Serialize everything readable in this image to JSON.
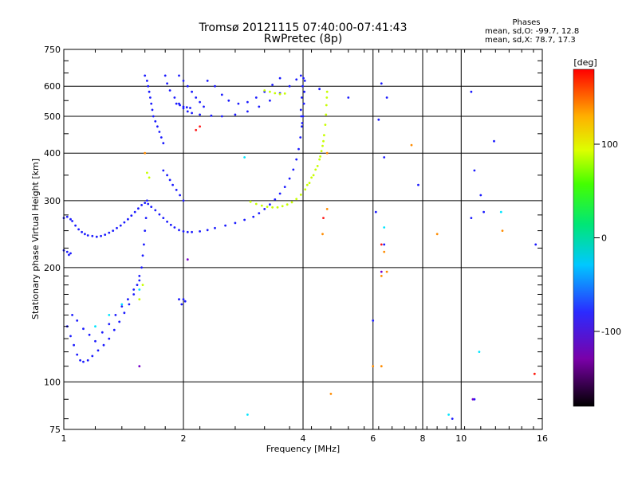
{
  "chart_data": {
    "type": "scatter",
    "title": "Tromsø 20121115 07:40:00-07:41:43",
    "subtitle": "RwPretec (8p)",
    "stats": {
      "heading": "Phases",
      "line1": "mean, sd,O: -99.7, 12.8",
      "line2": "mean, sd,X:  78.7, 17.3"
    },
    "xlabel": "Frequency [MHz]",
    "ylabel": "Stationary phase Virtual Height [km]",
    "x_scale": "log",
    "y_scale": "log",
    "xlim": [
      1,
      16
    ],
    "ylim": [
      75,
      750
    ],
    "xticks": [
      "1",
      "2",
      "4",
      "6",
      "8",
      "10",
      "16"
    ],
    "xtick_values": [
      1,
      2,
      4,
      6,
      8,
      10,
      16
    ],
    "yticks": [
      "75",
      "100",
      "200",
      "300",
      "400",
      "500",
      "600",
      "750"
    ],
    "ytick_values": [
      75,
      100,
      200,
      300,
      400,
      500,
      600,
      750
    ],
    "grid": true,
    "colorbar": {
      "label": "[deg]",
      "range": [
        -180,
        180
      ],
      "ticks": [
        "100",
        "0",
        "-100"
      ],
      "tick_values": [
        100,
        0,
        -100
      ]
    },
    "series": [
      {
        "color": "#1a1aff",
        "points": [
          [
            1.0,
            270
          ],
          [
            1.02,
            272
          ],
          [
            1.04,
            268
          ],
          [
            1.05,
            265
          ],
          [
            1.07,
            258
          ],
          [
            1.09,
            252
          ],
          [
            1.11,
            248
          ],
          [
            1.13,
            245
          ],
          [
            1.15,
            243
          ],
          [
            1.18,
            242
          ],
          [
            1.21,
            241
          ],
          [
            1.24,
            242
          ],
          [
            1.27,
            244
          ],
          [
            1.3,
            247
          ],
          [
            1.33,
            250
          ],
          [
            1.36,
            254
          ],
          [
            1.39,
            258
          ],
          [
            1.42,
            263
          ],
          [
            1.45,
            268
          ],
          [
            1.48,
            274
          ],
          [
            1.51,
            280
          ],
          [
            1.54,
            286
          ],
          [
            1.57,
            292
          ],
          [
            1.6,
            296
          ],
          [
            1.63,
            294
          ],
          [
            1.66,
            289
          ],
          [
            1.7,
            283
          ],
          [
            1.74,
            276
          ],
          [
            1.78,
            270
          ],
          [
            1.82,
            264
          ],
          [
            1.86,
            259
          ],
          [
            1.9,
            255
          ],
          [
            1.95,
            251
          ],
          [
            2.0,
            249
          ],
          [
            2.05,
            248
          ],
          [
            2.1,
            248
          ],
          [
            2.2,
            249
          ],
          [
            2.3,
            251
          ],
          [
            2.4,
            254
          ],
          [
            2.55,
            258
          ],
          [
            2.7,
            262
          ],
          [
            2.85,
            267
          ],
          [
            3.0,
            272
          ],
          [
            3.1,
            278
          ],
          [
            3.2,
            285
          ],
          [
            3.3,
            293
          ],
          [
            3.4,
            302
          ],
          [
            3.5,
            313
          ],
          [
            3.6,
            326
          ],
          [
            3.7,
            343
          ],
          [
            3.78,
            362
          ],
          [
            3.85,
            385
          ],
          [
            3.9,
            410
          ],
          [
            3.94,
            440
          ],
          [
            3.97,
            470
          ],
          [
            4.0,
            500
          ],
          [
            4.02,
            540
          ],
          [
            4.03,
            580
          ],
          [
            4.04,
            620
          ],
          [
            1.0,
            222
          ],
          [
            1.02,
            220
          ],
          [
            1.04,
            218
          ],
          [
            1.03,
            216
          ],
          [
            1.02,
            140
          ],
          [
            1.04,
            132
          ],
          [
            1.06,
            125
          ],
          [
            1.08,
            118
          ],
          [
            1.1,
            114
          ],
          [
            1.12,
            113
          ],
          [
            1.15,
            114
          ],
          [
            1.18,
            117
          ],
          [
            1.22,
            121
          ],
          [
            1.26,
            125
          ],
          [
            1.3,
            130
          ],
          [
            1.34,
            137
          ],
          [
            1.38,
            144
          ],
          [
            1.42,
            152
          ],
          [
            1.46,
            160
          ],
          [
            1.5,
            170
          ],
          [
            1.53,
            180
          ],
          [
            1.55,
            190
          ],
          [
            1.57,
            200
          ],
          [
            1.58,
            215
          ],
          [
            1.59,
            230
          ],
          [
            1.6,
            250
          ],
          [
            1.61,
            270
          ],
          [
            1.62,
            300
          ],
          [
            1.05,
            150
          ],
          [
            1.08,
            145
          ],
          [
            1.12,
            138
          ],
          [
            1.16,
            133
          ],
          [
            1.2,
            128
          ],
          [
            1.25,
            135
          ],
          [
            1.3,
            142
          ],
          [
            1.35,
            150
          ],
          [
            1.4,
            158
          ],
          [
            1.45,
            165
          ],
          [
            1.5,
            175
          ],
          [
            1.55,
            185
          ],
          [
            1.6,
            640
          ],
          [
            1.62,
            620
          ],
          [
            1.63,
            600
          ],
          [
            1.64,
            580
          ],
          [
            1.65,
            560
          ],
          [
            1.66,
            540
          ],
          [
            1.67,
            520
          ],
          [
            1.68,
            500
          ],
          [
            1.7,
            485
          ],
          [
            1.72,
            470
          ],
          [
            1.74,
            455
          ],
          [
            1.76,
            440
          ],
          [
            1.78,
            425
          ],
          [
            1.8,
            640
          ],
          [
            1.82,
            610
          ],
          [
            1.85,
            585
          ],
          [
            1.9,
            560
          ],
          [
            1.95,
            540
          ],
          [
            2.0,
            525
          ],
          [
            2.05,
            515
          ],
          [
            2.1,
            510
          ],
          [
            2.2,
            505
          ],
          [
            2.35,
            502
          ],
          [
            2.5,
            500
          ],
          [
            2.7,
            505
          ],
          [
            2.9,
            515
          ],
          [
            3.1,
            530
          ],
          [
            3.3,
            550
          ],
          [
            3.5,
            575
          ],
          [
            3.7,
            600
          ],
          [
            3.85,
            625
          ],
          [
            3.95,
            640
          ],
          [
            1.95,
            640
          ],
          [
            2.0,
            620
          ],
          [
            2.05,
            600
          ],
          [
            2.1,
            580
          ],
          [
            2.15,
            560
          ],
          [
            2.2,
            545
          ],
          [
            2.25,
            530
          ],
          [
            2.3,
            620
          ],
          [
            2.4,
            600
          ],
          [
            2.5,
            570
          ],
          [
            2.6,
            550
          ],
          [
            2.75,
            540
          ],
          [
            2.9,
            545
          ],
          [
            3.05,
            560
          ],
          [
            3.2,
            580
          ],
          [
            3.35,
            605
          ],
          [
            3.5,
            630
          ],
          [
            1.92,
            540
          ],
          [
            1.96,
            535
          ],
          [
            2.0,
            530
          ],
          [
            2.04,
            528
          ],
          [
            2.08,
            526
          ],
          [
            1.78,
            360
          ],
          [
            1.82,
            350
          ],
          [
            1.85,
            340
          ],
          [
            1.88,
            330
          ],
          [
            1.92,
            320
          ],
          [
            1.96,
            310
          ],
          [
            2.0,
            300
          ],
          [
            2.0,
            165
          ],
          [
            2.02,
            163
          ],
          [
            1.98,
            160
          ],
          [
            1.95,
            165
          ],
          [
            3.95,
            520
          ],
          [
            3.97,
            560
          ],
          [
            3.99,
            600
          ],
          [
            4.01,
            630
          ],
          [
            3.96,
            500
          ],
          [
            3.98,
            480
          ],
          [
            6.3,
            610
          ],
          [
            6.5,
            560
          ],
          [
            6.2,
            490
          ],
          [
            6.4,
            390
          ],
          [
            6.1,
            280
          ],
          [
            6.4,
            230
          ],
          [
            4.4,
            590
          ],
          [
            5.2,
            560
          ],
          [
            7.8,
            330
          ],
          [
            10.6,
            580
          ],
          [
            12.1,
            430
          ],
          [
            10.8,
            360
          ],
          [
            11.2,
            310
          ],
          [
            10.6,
            270
          ],
          [
            11.4,
            280
          ],
          [
            15.4,
            230
          ],
          [
            6.0,
            145
          ],
          [
            9.5,
            80
          ],
          [
            10.8,
            90
          ]
        ]
      },
      {
        "color": "#c8ff00",
        "points": [
          [
            2.95,
            298
          ],
          [
            3.05,
            294
          ],
          [
            3.15,
            291
          ],
          [
            3.25,
            289
          ],
          [
            3.35,
            288
          ],
          [
            3.45,
            288
          ],
          [
            3.55,
            290
          ],
          [
            3.65,
            293
          ],
          [
            3.75,
            297
          ],
          [
            3.85,
            303
          ],
          [
            3.95,
            311
          ],
          [
            4.05,
            321
          ],
          [
            4.15,
            334
          ],
          [
            4.25,
            350
          ],
          [
            4.35,
            370
          ],
          [
            4.42,
            392
          ],
          [
            4.48,
            418
          ],
          [
            4.52,
            446
          ],
          [
            4.55,
            475
          ],
          [
            4.57,
            505
          ],
          [
            4.58,
            535
          ],
          [
            4.59,
            560
          ],
          [
            4.6,
            580
          ],
          [
            3.2,
            585
          ],
          [
            3.3,
            580
          ],
          [
            3.4,
            575
          ],
          [
            3.5,
            572
          ],
          [
            3.6,
            574
          ],
          [
            4.1,
            330
          ],
          [
            4.2,
            345
          ],
          [
            4.3,
            362
          ],
          [
            4.4,
            385
          ],
          [
            4.45,
            405
          ],
          [
            4.5,
            430
          ],
          [
            1.62,
            355
          ],
          [
            1.64,
            345
          ],
          [
            1.58,
            180
          ],
          [
            1.55,
            165
          ]
        ]
      },
      {
        "color": "#ff8c00",
        "points": [
          [
            4.6,
            285
          ],
          [
            4.48,
            245
          ],
          [
            4.7,
            93
          ],
          [
            6.4,
            220
          ],
          [
            6.5,
            195
          ],
          [
            6.3,
            190
          ],
          [
            7.5,
            420
          ],
          [
            6.0,
            110
          ],
          [
            6.3,
            110
          ],
          [
            8.7,
            245
          ],
          [
            12.7,
            250
          ],
          [
            15.3,
            105
          ],
          [
            1.6,
            400
          ],
          [
            4.6,
            400
          ]
        ]
      },
      {
        "color": "#00e5ff",
        "points": [
          [
            2.85,
            390
          ],
          [
            2.9,
            82
          ],
          [
            6.4,
            255
          ],
          [
            9.3,
            82
          ],
          [
            11.1,
            120
          ],
          [
            12.6,
            280
          ],
          [
            1.55,
            175
          ],
          [
            1.4,
            160
          ],
          [
            1.3,
            150
          ],
          [
            1.2,
            140
          ]
        ]
      },
      {
        "color": "#ff1a1a",
        "points": [
          [
            2.2,
            470
          ],
          [
            6.3,
            230
          ],
          [
            4.5,
            270
          ],
          [
            15.3,
            105
          ],
          [
            2.15,
            460
          ]
        ]
      },
      {
        "color": "#7700cc",
        "points": [
          [
            1.55,
            110
          ],
          [
            6.3,
            195
          ],
          [
            10.7,
            90
          ],
          [
            2.05,
            210
          ]
        ]
      }
    ]
  }
}
